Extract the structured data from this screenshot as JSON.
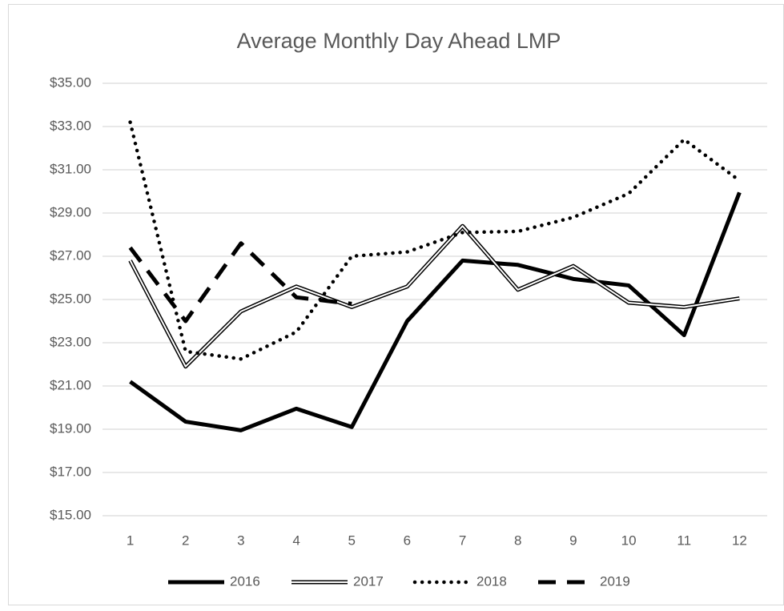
{
  "chart_data": {
    "type": "line",
    "title": "Average Monthly Day Ahead LMP",
    "categories": [
      "1",
      "2",
      "3",
      "4",
      "5",
      "6",
      "7",
      "8",
      "9",
      "10",
      "11",
      "12"
    ],
    "series": [
      {
        "name": "2016",
        "color": "#000000",
        "line_style": "solid",
        "values": [
          21.2,
          19.35,
          18.95,
          19.95,
          19.1,
          24.0,
          26.8,
          26.6,
          25.95,
          25.65,
          23.35,
          29.95
        ]
      },
      {
        "name": "2017",
        "color": "#000000",
        "line_style": "double",
        "values": [
          26.8,
          21.9,
          24.45,
          25.6,
          24.65,
          25.6,
          28.4,
          25.45,
          26.55,
          24.85,
          24.65,
          25.05
        ]
      },
      {
        "name": "2018",
        "color": "#000000",
        "line_style": "dotted",
        "values": [
          33.2,
          22.6,
          22.25,
          23.5,
          27.0,
          27.2,
          28.1,
          28.15,
          28.8,
          29.9,
          32.4,
          30.5
        ]
      },
      {
        "name": "2019",
        "color": "#000000",
        "line_style": "dashed",
        "values": [
          27.4,
          24.0,
          27.6,
          25.1,
          24.8,
          null,
          null,
          null,
          null,
          null,
          null,
          null
        ]
      }
    ],
    "ylim": [
      15,
      35
    ],
    "yticks": [
      {
        "value": 15,
        "label": "$15.00"
      },
      {
        "value": 17,
        "label": "$17.00"
      },
      {
        "value": 19,
        "label": "$19.00"
      },
      {
        "value": 21,
        "label": "$21.00"
      },
      {
        "value": 23,
        "label": "$23.00"
      },
      {
        "value": 25,
        "label": "$25.00"
      },
      {
        "value": 27,
        "label": "$27.00"
      },
      {
        "value": 29,
        "label": "$29.00"
      },
      {
        "value": 31,
        "label": "$31.00"
      },
      {
        "value": 33,
        "label": "$33.00"
      },
      {
        "value": 35,
        "label": "$35.00"
      }
    ],
    "grid": true,
    "legend": "bottom"
  }
}
